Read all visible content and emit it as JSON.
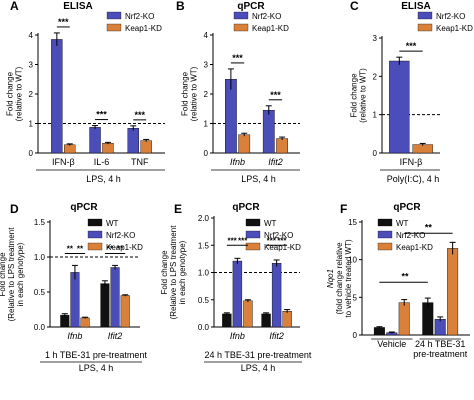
{
  "colors": {
    "nrf2": "#4B4DB8",
    "keap1": "#D9803A",
    "wt": "#111111"
  },
  "chart_data": [
    {
      "type": "bar",
      "panel_letter": "A",
      "title": "ELISA",
      "categories": [
        "IFN-β",
        "IL-6",
        "TNF"
      ],
      "series": [
        {
          "name": "Nrf2-KO",
          "values": [
            3.85,
            0.87,
            0.84
          ],
          "errors": [
            0.22,
            0.06,
            0.08
          ]
        },
        {
          "name": "Keap1-KD",
          "values": [
            0.28,
            0.33,
            0.42
          ],
          "errors": [
            0.03,
            0.03,
            0.04
          ]
        }
      ],
      "ylabel": "Fold change\n(relative to WT)",
      "xlabel": "LPS, 4 h",
      "ylim": [
        0,
        4
      ],
      "yticks": [
        0,
        1,
        2,
        3,
        4
      ],
      "reference_line": 1,
      "significance": [
        "***",
        "***",
        "***"
      ],
      "legend_position": "top-right"
    },
    {
      "type": "bar",
      "panel_letter": "B",
      "title": "qPCR",
      "categories": [
        "Ifnb",
        "Ifit2"
      ],
      "series": [
        {
          "name": "Nrf2-KO",
          "values": [
            2.5,
            1.45
          ],
          "errors": [
            0.35,
            0.15
          ]
        },
        {
          "name": "Keap1-KD",
          "values": [
            0.62,
            0.49
          ],
          "errors": [
            0.05,
            0.05
          ]
        }
      ],
      "ylabel": "Fold change\n(relative to WT)",
      "xlabel": "LPS, 4 h",
      "ylim": [
        0,
        4
      ],
      "yticks": [
        0,
        1,
        2,
        3,
        4
      ],
      "reference_line": 1,
      "significance": [
        "***",
        "***"
      ],
      "legend_position": "top-right"
    },
    {
      "type": "bar",
      "panel_letter": "C",
      "title": "ELISA",
      "categories": [
        "IFN-β"
      ],
      "series": [
        {
          "name": "Nrf2-KO",
          "values": [
            2.4
          ],
          "errors": [
            0.1
          ]
        },
        {
          "name": "Keap1-KD",
          "values": [
            0.22
          ],
          "errors": [
            0.03
          ]
        }
      ],
      "ylabel": "Fold change\n(relative to WT)",
      "xlabel": "Poly(I:C), 4 h",
      "ylim": [
        0,
        3
      ],
      "yticks": [
        0,
        1,
        2,
        3
      ],
      "reference_line": 1,
      "significance": [
        "***"
      ],
      "legend_position": "top-right"
    },
    {
      "type": "bar",
      "panel_letter": "D",
      "title": "qPCR",
      "categories": [
        "Ifnb",
        "Ifit2"
      ],
      "series": [
        {
          "name": "WT",
          "values": [
            0.17,
            0.62
          ],
          "errors": [
            0.02,
            0.04
          ]
        },
        {
          "name": "Nrf2-KO",
          "values": [
            0.78,
            0.85
          ],
          "errors": [
            0.1,
            0.03
          ]
        },
        {
          "name": "Keap1-KD",
          "values": [
            0.13,
            0.45
          ],
          "errors": [
            0.01,
            0.01
          ]
        }
      ],
      "ylabel": "Fold change\n(Relative to LPS treatment\nin each genotype)",
      "xlabel": "1 h TBE-31 pre-treatment\nLPS, 4 h",
      "ylim": [
        0,
        1.5
      ],
      "yticks": [
        0.0,
        0.5,
        1.0,
        1.5
      ],
      "reference_line": 1,
      "significance": [
        "**",
        "**",
        "**",
        "**"
      ],
      "legend_position": "top-right"
    },
    {
      "type": "bar",
      "panel_letter": "E",
      "title": "qPCR",
      "categories": [
        "Ifnb",
        "Ifit2"
      ],
      "series": [
        {
          "name": "WT",
          "values": [
            0.24,
            0.24
          ],
          "errors": [
            0.02,
            0.02
          ]
        },
        {
          "name": "Nrf2-KO",
          "values": [
            1.21,
            1.17
          ],
          "errors": [
            0.05,
            0.06
          ]
        },
        {
          "name": "Keap1-KD",
          "values": [
            0.48,
            0.29
          ],
          "errors": [
            0.02,
            0.03
          ]
        }
      ],
      "ylabel": "Fold change\n(Relative to LPS treatment\nin each genotype)",
      "xlabel": "24 h TBE-31 pre-treatment\nLPS, 4 h",
      "ylim": [
        0,
        2
      ],
      "yticks": [
        0.0,
        0.5,
        1.0,
        1.5,
        2.0
      ],
      "reference_line": 1,
      "significance": [
        "***",
        "***",
        "***",
        "***"
      ],
      "legend_position": "top-right"
    },
    {
      "type": "bar",
      "panel_letter": "F",
      "title": "qPCR",
      "categories": [
        "Vehicle",
        "24 h TBE-31\npre-treatment"
      ],
      "series": [
        {
          "name": "WT",
          "values": [
            1.0,
            4.3
          ],
          "errors": [
            0.1,
            0.6
          ]
        },
        {
          "name": "Nrf2-KO",
          "values": [
            0.3,
            2.1
          ],
          "errors": [
            0.1,
            0.3
          ]
        },
        {
          "name": "Keap1-KD",
          "values": [
            4.3,
            11.5
          ],
          "errors": [
            0.4,
            0.8
          ]
        }
      ],
      "ylabel": "Nqo1\n(fold change relative\nto vehicle treated WT)",
      "xlabel": "",
      "ylim": [
        0,
        15
      ],
      "yticks": [
        0,
        5,
        10,
        15
      ],
      "significance": [
        "**",
        "**"
      ],
      "legend_position": "top-left"
    }
  ]
}
